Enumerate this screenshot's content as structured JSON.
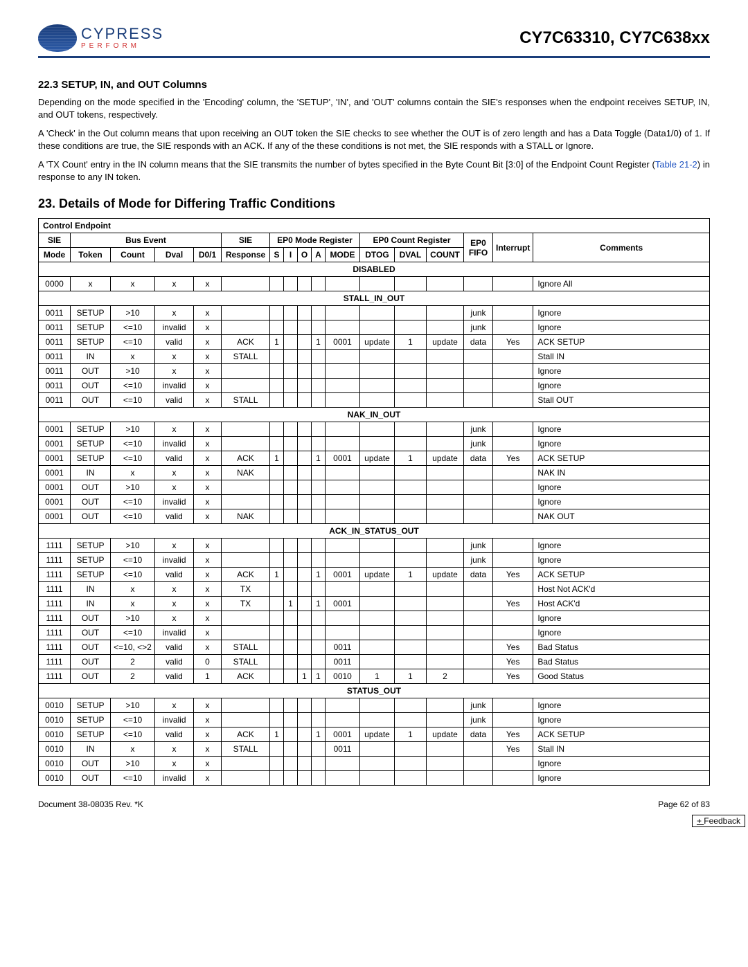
{
  "header": {
    "logo_main": "CYPRESS",
    "logo_sub": "PERFORM",
    "part_number": "CY7C63310, CY7C638xx"
  },
  "section_223": {
    "title": "22.3  SETUP, IN, and OUT Columns",
    "p1": "Depending on the mode specified in the 'Encoding' column, the 'SETUP', 'IN', and 'OUT' columns contain the SIE's responses when the endpoint receives SETUP, IN, and OUT tokens, respectively.",
    "p2": "A 'Check' in the Out column means that upon receiving an OUT token the SIE checks to see whether the OUT is of zero length and has a Data Toggle (Data1/0) of 1. If these conditions are true, the SIE responds with an ACK. If any of the these conditions is not met, the SIE responds with a STALL or Ignore.",
    "p3a": "A 'TX Count' entry in the IN column means that the SIE transmits the number of bytes specified in the Byte Count Bit [3:0] of the Endpoint Count Register (",
    "p3_link": "Table 21-2",
    "p3b": ") in response to any IN token."
  },
  "section_23_title": "23.  Details of Mode for Differing Traffic Conditions",
  "table": {
    "caption": "Control Endpoint",
    "group_headers": {
      "sie": "SIE",
      "bus_event": "Bus Event",
      "sie2": "SIE",
      "ep0_mode": "EP0 Mode Register",
      "ep0_count": "EP0 Count Register",
      "ep0": "EP0",
      "interrupt": "Interrupt",
      "comments": "Comments"
    },
    "col_headers": {
      "mode": "Mode",
      "token": "Token",
      "count": "Count",
      "dval": "Dval",
      "d01": "D0/1",
      "response": "Response",
      "s": "S",
      "i": "I",
      "o": "O",
      "a": "A",
      "moder": "MODE",
      "dtog": "DTOG",
      "dvalr": "DVAL",
      "countr": "COUNT",
      "fifo": "FIFO"
    },
    "sections": [
      {
        "name": "DISABLED",
        "rows": [
          {
            "mode": "0000",
            "token": "x",
            "count": "x",
            "dval": "x",
            "d01": "x",
            "resp": "",
            "s": "",
            "i": "",
            "o": "",
            "a": "",
            "moder": "",
            "dtog": "",
            "dvalr": "",
            "countr": "",
            "fifo": "",
            "int": "",
            "comments": "Ignore All"
          }
        ]
      },
      {
        "name": "STALL_IN_OUT",
        "rows": [
          {
            "mode": "0011",
            "token": "SETUP",
            "count": ">10",
            "dval": "x",
            "d01": "x",
            "resp": "",
            "s": "",
            "i": "",
            "o": "",
            "a": "",
            "moder": "",
            "dtog": "",
            "dvalr": "",
            "countr": "",
            "fifo": "junk",
            "int": "",
            "comments": "Ignore"
          },
          {
            "mode": "0011",
            "token": "SETUP",
            "count": "<=10",
            "dval": "invalid",
            "d01": "x",
            "resp": "",
            "s": "",
            "i": "",
            "o": "",
            "a": "",
            "moder": "",
            "dtog": "",
            "dvalr": "",
            "countr": "",
            "fifo": "junk",
            "int": "",
            "comments": "Ignore"
          },
          {
            "mode": "0011",
            "token": "SETUP",
            "count": "<=10",
            "dval": "valid",
            "d01": "x",
            "resp": "ACK",
            "s": "1",
            "i": "",
            "o": "",
            "a": "1",
            "moder": "0001",
            "dtog": "update",
            "dvalr": "1",
            "countr": "update",
            "fifo": "data",
            "int": "Yes",
            "comments": "ACK SETUP"
          },
          {
            "mode": "0011",
            "token": "IN",
            "count": "x",
            "dval": "x",
            "d01": "x",
            "resp": "STALL",
            "s": "",
            "i": "",
            "o": "",
            "a": "",
            "moder": "",
            "dtog": "",
            "dvalr": "",
            "countr": "",
            "fifo": "",
            "int": "",
            "comments": "Stall IN"
          },
          {
            "mode": "0011",
            "token": "OUT",
            "count": ">10",
            "dval": "x",
            "d01": "x",
            "resp": "",
            "s": "",
            "i": "",
            "o": "",
            "a": "",
            "moder": "",
            "dtog": "",
            "dvalr": "",
            "countr": "",
            "fifo": "",
            "int": "",
            "comments": "Ignore"
          },
          {
            "mode": "0011",
            "token": "OUT",
            "count": "<=10",
            "dval": "invalid",
            "d01": "x",
            "resp": "",
            "s": "",
            "i": "",
            "o": "",
            "a": "",
            "moder": "",
            "dtog": "",
            "dvalr": "",
            "countr": "",
            "fifo": "",
            "int": "",
            "comments": "Ignore"
          },
          {
            "mode": "0011",
            "token": "OUT",
            "count": "<=10",
            "dval": "valid",
            "d01": "x",
            "resp": "STALL",
            "s": "",
            "i": "",
            "o": "",
            "a": "",
            "moder": "",
            "dtog": "",
            "dvalr": "",
            "countr": "",
            "fifo": "",
            "int": "",
            "comments": "Stall OUT"
          }
        ]
      },
      {
        "name": "NAK_IN_OUT",
        "rows": [
          {
            "mode": "0001",
            "token": "SETUP",
            "count": ">10",
            "dval": "x",
            "d01": "x",
            "resp": "",
            "s": "",
            "i": "",
            "o": "",
            "a": "",
            "moder": "",
            "dtog": "",
            "dvalr": "",
            "countr": "",
            "fifo": "junk",
            "int": "",
            "comments": "Ignore"
          },
          {
            "mode": "0001",
            "token": "SETUP",
            "count": "<=10",
            "dval": "invalid",
            "d01": "x",
            "resp": "",
            "s": "",
            "i": "",
            "o": "",
            "a": "",
            "moder": "",
            "dtog": "",
            "dvalr": "",
            "countr": "",
            "fifo": "junk",
            "int": "",
            "comments": "Ignore"
          },
          {
            "mode": "0001",
            "token": "SETUP",
            "count": "<=10",
            "dval": "valid",
            "d01": "x",
            "resp": "ACK",
            "s": "1",
            "i": "",
            "o": "",
            "a": "1",
            "moder": "0001",
            "dtog": "update",
            "dvalr": "1",
            "countr": "update",
            "fifo": "data",
            "int": "Yes",
            "comments": "ACK SETUP"
          },
          {
            "mode": "0001",
            "token": "IN",
            "count": "x",
            "dval": "x",
            "d01": "x",
            "resp": "NAK",
            "s": "",
            "i": "",
            "o": "",
            "a": "",
            "moder": "",
            "dtog": "",
            "dvalr": "",
            "countr": "",
            "fifo": "",
            "int": "",
            "comments": "NAK IN"
          },
          {
            "mode": "0001",
            "token": "OUT",
            "count": ">10",
            "dval": "x",
            "d01": "x",
            "resp": "",
            "s": "",
            "i": "",
            "o": "",
            "a": "",
            "moder": "",
            "dtog": "",
            "dvalr": "",
            "countr": "",
            "fifo": "",
            "int": "",
            "comments": "Ignore"
          },
          {
            "mode": "0001",
            "token": "OUT",
            "count": "<=10",
            "dval": "invalid",
            "d01": "x",
            "resp": "",
            "s": "",
            "i": "",
            "o": "",
            "a": "",
            "moder": "",
            "dtog": "",
            "dvalr": "",
            "countr": "",
            "fifo": "",
            "int": "",
            "comments": "Ignore"
          },
          {
            "mode": "0001",
            "token": "OUT",
            "count": "<=10",
            "dval": "valid",
            "d01": "x",
            "resp": "NAK",
            "s": "",
            "i": "",
            "o": "",
            "a": "",
            "moder": "",
            "dtog": "",
            "dvalr": "",
            "countr": "",
            "fifo": "",
            "int": "",
            "comments": "NAK OUT"
          }
        ]
      },
      {
        "name": "ACK_IN_STATUS_OUT",
        "rows": [
          {
            "mode": "1111",
            "token": "SETUP",
            "count": ">10",
            "dval": "x",
            "d01": "x",
            "resp": "",
            "s": "",
            "i": "",
            "o": "",
            "a": "",
            "moder": "",
            "dtog": "",
            "dvalr": "",
            "countr": "",
            "fifo": "junk",
            "int": "",
            "comments": "Ignore"
          },
          {
            "mode": "1111",
            "token": "SETUP",
            "count": "<=10",
            "dval": "invalid",
            "d01": "x",
            "resp": "",
            "s": "",
            "i": "",
            "o": "",
            "a": "",
            "moder": "",
            "dtog": "",
            "dvalr": "",
            "countr": "",
            "fifo": "junk",
            "int": "",
            "comments": "Ignore"
          },
          {
            "mode": "1111",
            "token": "SETUP",
            "count": "<=10",
            "dval": "valid",
            "d01": "x",
            "resp": "ACK",
            "s": "1",
            "i": "",
            "o": "",
            "a": "1",
            "moder": "0001",
            "dtog": "update",
            "dvalr": "1",
            "countr": "update",
            "fifo": "data",
            "int": "Yes",
            "comments": "ACK SETUP"
          },
          {
            "mode": "1111",
            "token": "IN",
            "count": "x",
            "dval": "x",
            "d01": "x",
            "resp": "TX",
            "s": "",
            "i": "",
            "o": "",
            "a": "",
            "moder": "",
            "dtog": "",
            "dvalr": "",
            "countr": "",
            "fifo": "",
            "int": "",
            "comments": "Host Not ACK'd"
          },
          {
            "mode": "1111",
            "token": "IN",
            "count": "x",
            "dval": "x",
            "d01": "x",
            "resp": "TX",
            "s": "",
            "i": "1",
            "o": "",
            "a": "1",
            "moder": "0001",
            "dtog": "",
            "dvalr": "",
            "countr": "",
            "fifo": "",
            "int": "Yes",
            "comments": "Host ACK'd"
          },
          {
            "mode": "1111",
            "token": "OUT",
            "count": ">10",
            "dval": "x",
            "d01": "x",
            "resp": "",
            "s": "",
            "i": "",
            "o": "",
            "a": "",
            "moder": "",
            "dtog": "",
            "dvalr": "",
            "countr": "",
            "fifo": "",
            "int": "",
            "comments": "Ignore"
          },
          {
            "mode": "1111",
            "token": "OUT",
            "count": "<=10",
            "dval": "invalid",
            "d01": "x",
            "resp": "",
            "s": "",
            "i": "",
            "o": "",
            "a": "",
            "moder": "",
            "dtog": "",
            "dvalr": "",
            "countr": "",
            "fifo": "",
            "int": "",
            "comments": "Ignore"
          },
          {
            "mode": "1111",
            "token": "OUT",
            "count": "<=10, <>2",
            "dval": "valid",
            "d01": "x",
            "resp": "STALL",
            "s": "",
            "i": "",
            "o": "",
            "a": "",
            "moder": "0011",
            "dtog": "",
            "dvalr": "",
            "countr": "",
            "fifo": "",
            "int": "Yes",
            "comments": "Bad Status"
          },
          {
            "mode": "1111",
            "token": "OUT",
            "count": "2",
            "dval": "valid",
            "d01": "0",
            "resp": "STALL",
            "s": "",
            "i": "",
            "o": "",
            "a": "",
            "moder": "0011",
            "dtog": "",
            "dvalr": "",
            "countr": "",
            "fifo": "",
            "int": "Yes",
            "comments": "Bad Status"
          },
          {
            "mode": "1111",
            "token": "OUT",
            "count": "2",
            "dval": "valid",
            "d01": "1",
            "resp": "ACK",
            "s": "",
            "i": "",
            "o": "1",
            "a": "1",
            "moder": "0010",
            "dtog": "1",
            "dvalr": "1",
            "countr": "2",
            "fifo": "",
            "int": "Yes",
            "comments": "Good Status"
          }
        ]
      },
      {
        "name": "STATUS_OUT",
        "rows": [
          {
            "mode": "0010",
            "token": "SETUP",
            "count": ">10",
            "dval": "x",
            "d01": "x",
            "resp": "",
            "s": "",
            "i": "",
            "o": "",
            "a": "",
            "moder": "",
            "dtog": "",
            "dvalr": "",
            "countr": "",
            "fifo": "junk",
            "int": "",
            "comments": "Ignore"
          },
          {
            "mode": "0010",
            "token": "SETUP",
            "count": "<=10",
            "dval": "invalid",
            "d01": "x",
            "resp": "",
            "s": "",
            "i": "",
            "o": "",
            "a": "",
            "moder": "",
            "dtog": "",
            "dvalr": "",
            "countr": "",
            "fifo": "junk",
            "int": "",
            "comments": "Ignore"
          },
          {
            "mode": "0010",
            "token": "SETUP",
            "count": "<=10",
            "dval": "valid",
            "d01": "x",
            "resp": "ACK",
            "s": "1",
            "i": "",
            "o": "",
            "a": "1",
            "moder": "0001",
            "dtog": "update",
            "dvalr": "1",
            "countr": "update",
            "fifo": "data",
            "int": "Yes",
            "comments": "ACK SETUP"
          },
          {
            "mode": "0010",
            "token": "IN",
            "count": "x",
            "dval": "x",
            "d01": "x",
            "resp": "STALL",
            "s": "",
            "i": "",
            "o": "",
            "a": "",
            "moder": "0011",
            "dtog": "",
            "dvalr": "",
            "countr": "",
            "fifo": "",
            "int": "Yes",
            "comments": "Stall IN"
          },
          {
            "mode": "0010",
            "token": "OUT",
            "count": ">10",
            "dval": "x",
            "d01": "x",
            "resp": "",
            "s": "",
            "i": "",
            "o": "",
            "a": "",
            "moder": "",
            "dtog": "",
            "dvalr": "",
            "countr": "",
            "fifo": "",
            "int": "",
            "comments": "Ignore"
          },
          {
            "mode": "0010",
            "token": "OUT",
            "count": "<=10",
            "dval": "invalid",
            "d01": "x",
            "resp": "",
            "s": "",
            "i": "",
            "o": "",
            "a": "",
            "moder": "",
            "dtog": "",
            "dvalr": "",
            "countr": "",
            "fifo": "",
            "int": "",
            "comments": "Ignore"
          }
        ]
      }
    ]
  },
  "footer": {
    "doc": "Document 38-08035 Rev. *K",
    "page": "Page 62 of 83",
    "feedback": "Feedback"
  }
}
